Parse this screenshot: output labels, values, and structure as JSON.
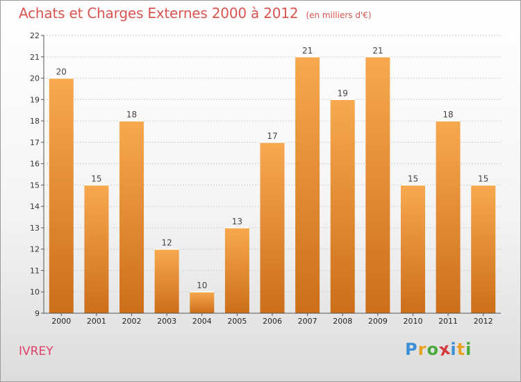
{
  "chart_data": {
    "type": "bar",
    "title": "Achats et Charges Externes 2000 à 2012",
    "subtitle": "(en milliers d'€)",
    "categories": [
      "2000",
      "2001",
      "2002",
      "2003",
      "2004",
      "2005",
      "2006",
      "2007",
      "2008",
      "2009",
      "2010",
      "2011",
      "2012"
    ],
    "values": [
      20,
      15,
      18,
      12,
      10,
      13,
      17,
      21,
      19,
      21,
      15,
      18,
      15
    ],
    "ylim": [
      9,
      22
    ],
    "yticks": [
      9,
      10,
      11,
      12,
      13,
      14,
      15,
      16,
      17,
      18,
      19,
      20,
      21,
      22
    ],
    "grid": true,
    "bar_color_top": "#f7a94f",
    "bar_color_bottom": "#cc6e1a"
  },
  "commune": "IVREY",
  "logo": {
    "letters": [
      "P",
      "r",
      "o",
      "x",
      "i",
      "t",
      "i"
    ],
    "colors": [
      "#3a8fd6",
      "#e8a020",
      "#4aaa3c",
      "#d63a3a",
      "#3a8fd6",
      "#e8a020",
      "#4aaa3c"
    ]
  }
}
